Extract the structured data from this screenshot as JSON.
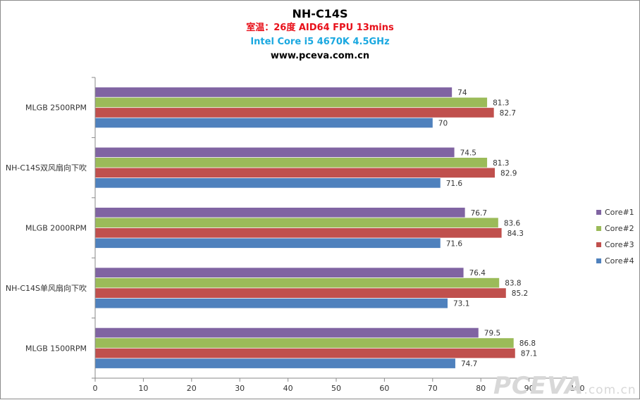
{
  "chart_data": {
    "type": "bar",
    "orientation": "horizontal",
    "title": "NH-C14S",
    "subtitles": [
      "室温：26度 AID64 FPU 13mins",
      "Intel Core i5 4670K 4.5GHz",
      "www.pceva.com.cn"
    ],
    "categories": [
      "MLGB 2500RPM",
      "NH-C14S双风扇向下吹",
      "MLGB 2000RPM",
      "NH-C14S单风扇向下吹",
      "MLGB 1500RPM"
    ],
    "series": [
      {
        "name": "Core#1",
        "color": "#8064a2",
        "values": [
          74,
          74.5,
          76.7,
          76.4,
          79.5
        ]
      },
      {
        "name": "Core#2",
        "color": "#9bbb59",
        "values": [
          81.3,
          81.3,
          83.6,
          83.8,
          86.8
        ]
      },
      {
        "name": "Core#3",
        "color": "#c0504d",
        "values": [
          82.7,
          82.9,
          84.3,
          85.2,
          87.1
        ]
      },
      {
        "name": "Core#4",
        "color": "#4f81bd",
        "values": [
          70,
          71.6,
          71.6,
          73.1,
          74.7
        ]
      }
    ],
    "xlim": [
      0,
      100
    ],
    "xticks": [
      0,
      10,
      20,
      30,
      40,
      50,
      60,
      70,
      80,
      90,
      100
    ],
    "legend_position": "right",
    "grid": false
  },
  "watermark": {
    "main": "PCEVA",
    "suffix": ".com.cn"
  }
}
